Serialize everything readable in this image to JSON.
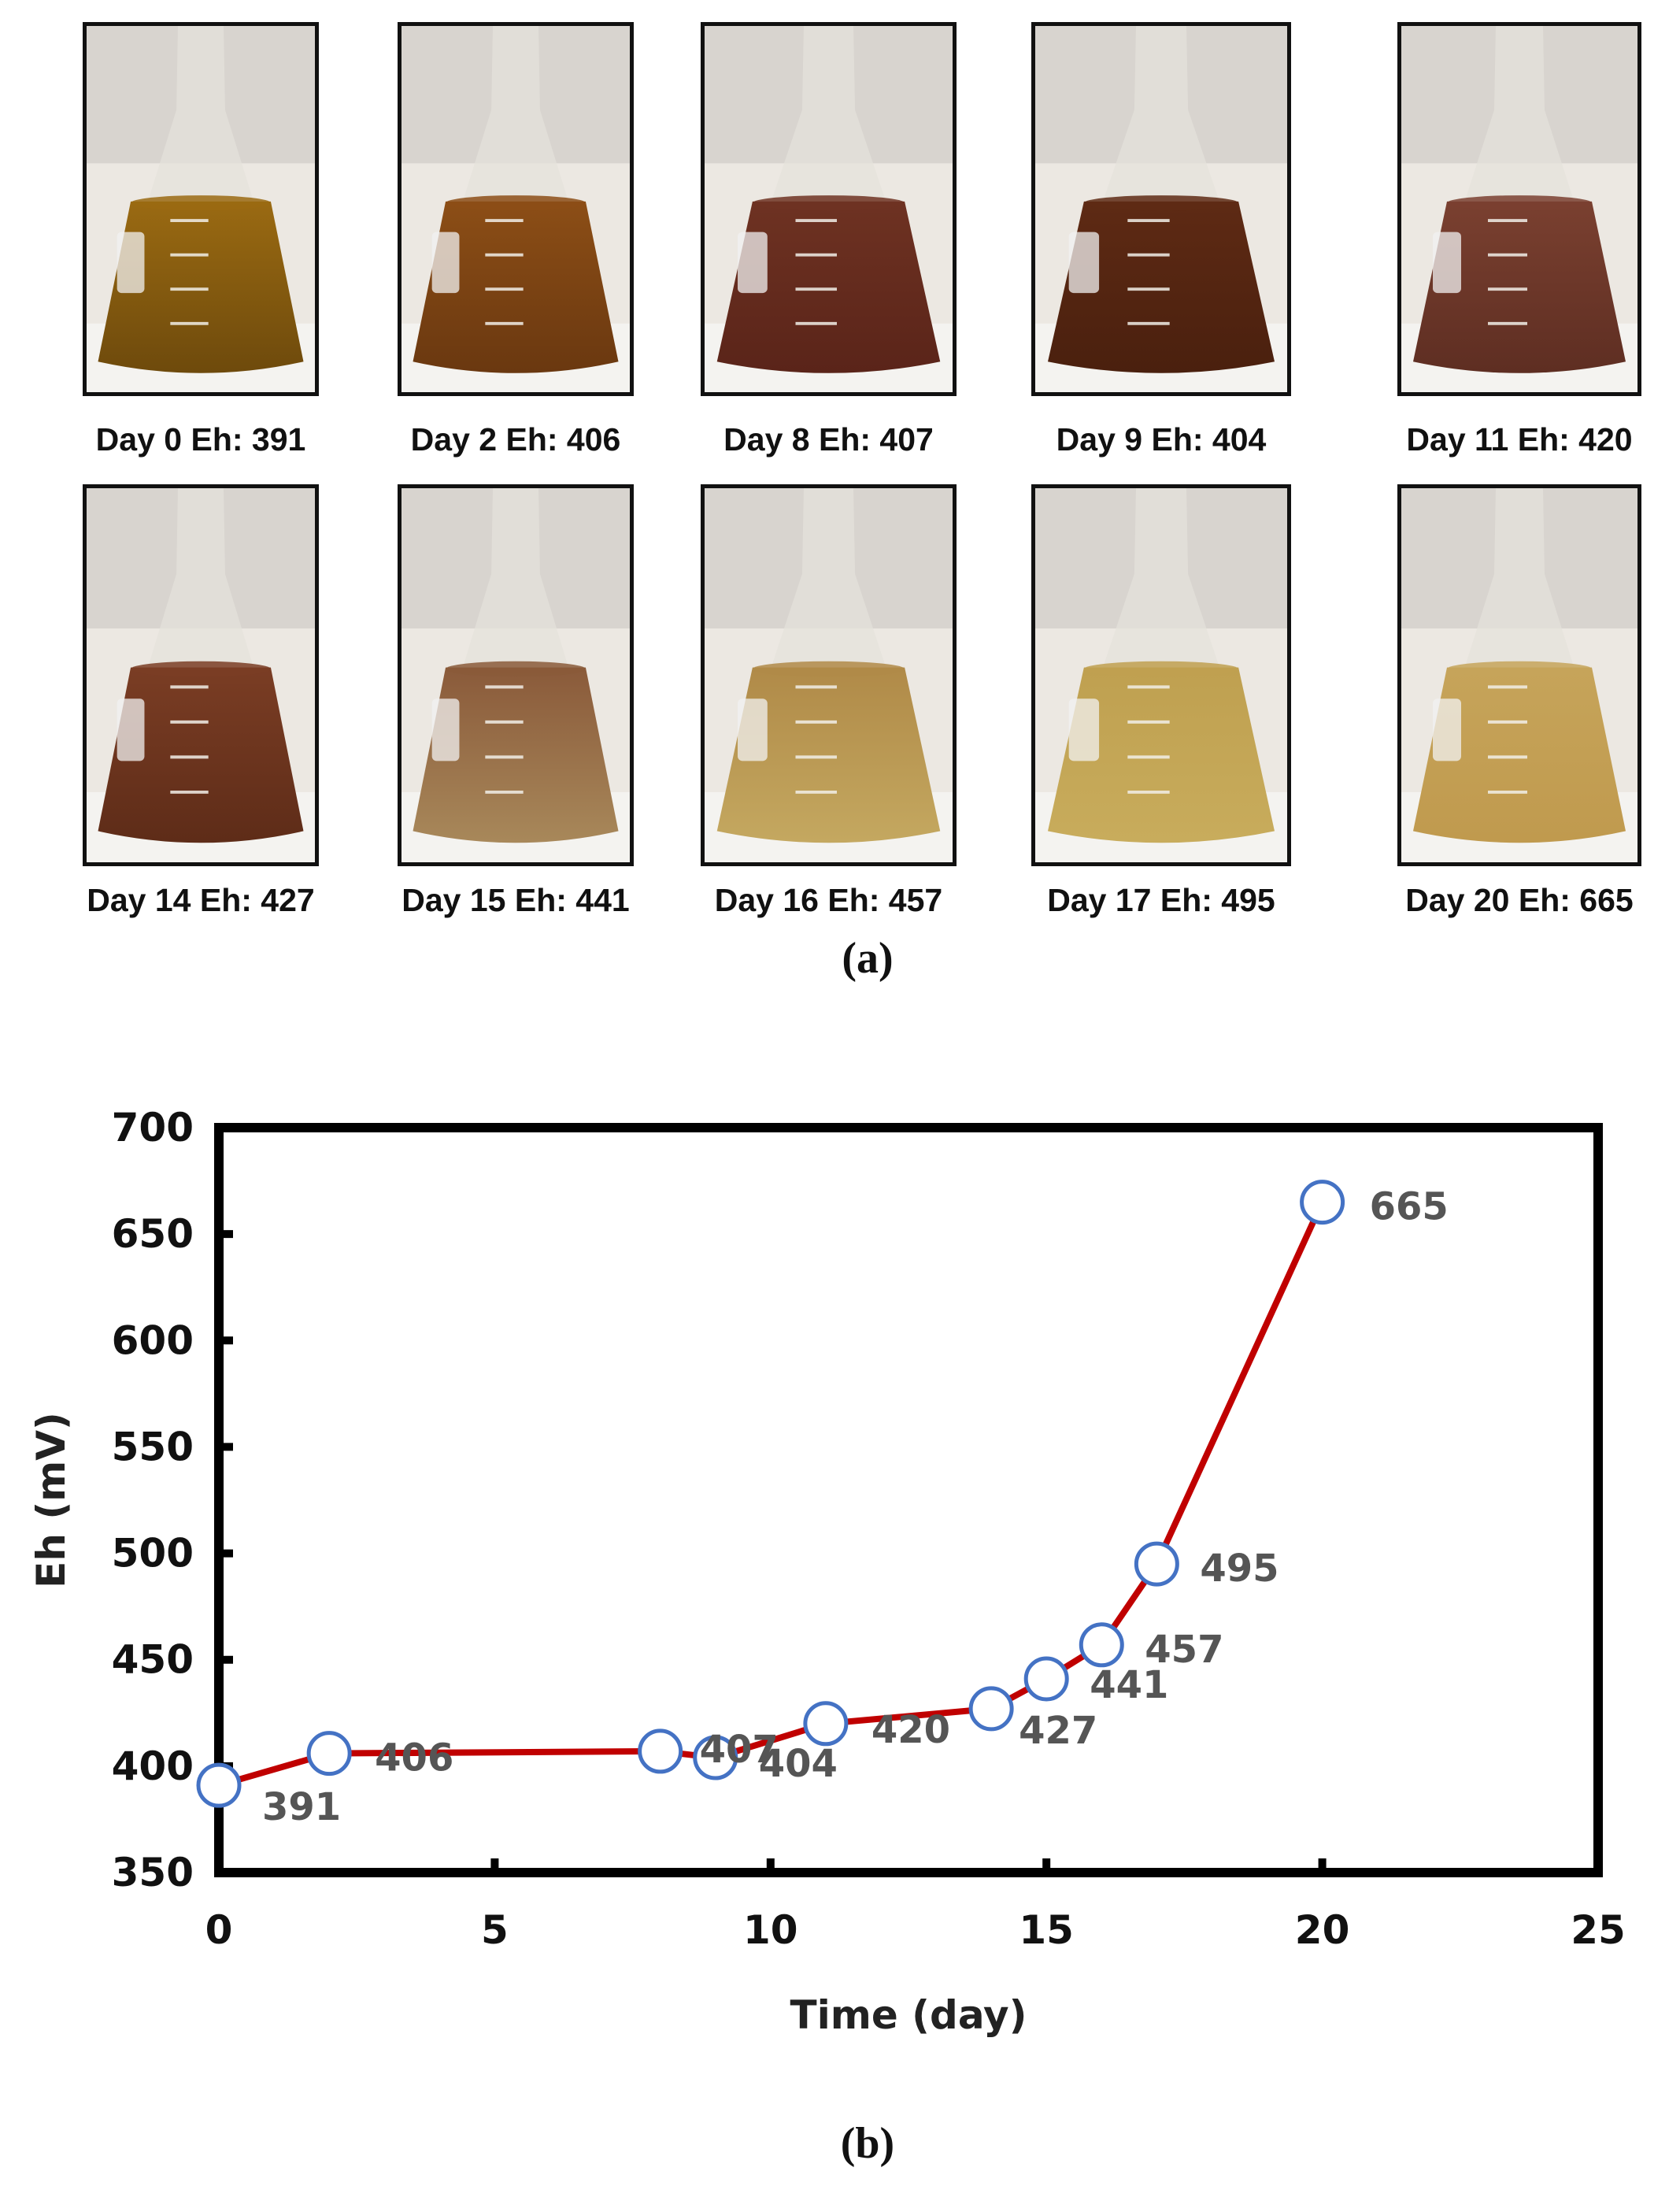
{
  "panel_a": {
    "label": "(a)",
    "photos": [
      {
        "caption": "Day 0 Eh: 391",
        "liquid": "#9a6a12",
        "bottom": "#6e4a0c"
      },
      {
        "caption": "Day 2 Eh: 406",
        "liquid": "#8c4e16",
        "bottom": "#6a3810"
      },
      {
        "caption": "Day 8 Eh: 407",
        "liquid": "#6e3222",
        "bottom": "#5a2419"
      },
      {
        "caption": "Day 9 Eh: 404",
        "liquid": "#5e2a14",
        "bottom": "#4a200e"
      },
      {
        "caption": "Day 11 Eh: 420",
        "liquid": "#7a4030",
        "bottom": "#5e2e22"
      },
      {
        "caption": "Day 14 Eh: 427",
        "liquid": "#7a3d24",
        "bottom": "#5e2c18"
      },
      {
        "caption": "Day 15 Eh: 441",
        "liquid": "#8a5a3a",
        "bottom": "#a8885a"
      },
      {
        "caption": "Day 16 Eh: 457",
        "liquid": "#b08a48",
        "bottom": "#c4a860"
      },
      {
        "caption": "Day 17 Eh: 495",
        "liquid": "#bfa050",
        "bottom": "#c8ac5c"
      },
      {
        "caption": "Day 20 Eh: 665",
        "liquid": "#c6a45a",
        "bottom": "#c09a4e"
      }
    ]
  },
  "panel_b": {
    "label": "(b)"
  },
  "chart_data": {
    "type": "line",
    "title": "",
    "xlabel": "Time (day)",
    "ylabel": "Eh (mV)",
    "xlim": [
      0,
      25
    ],
    "ylim": [
      350,
      700
    ],
    "xticks": [
      0,
      5,
      10,
      15,
      20,
      25
    ],
    "yticks": [
      350,
      400,
      450,
      500,
      550,
      600,
      650,
      700
    ],
    "grid": false,
    "line_color": "#c00000",
    "marker_edge_color": "#4472c4",
    "series": [
      {
        "name": "Eh",
        "x": [
          0,
          2,
          8,
          9,
          11,
          14,
          15,
          16,
          17,
          20
        ],
        "y": [
          391,
          406,
          407,
          404,
          420,
          427,
          441,
          457,
          495,
          665
        ],
        "labels": [
          "391",
          "406",
          "407",
          "404",
          "420",
          "427",
          "441",
          "457",
          "495",
          "665"
        ]
      }
    ]
  }
}
